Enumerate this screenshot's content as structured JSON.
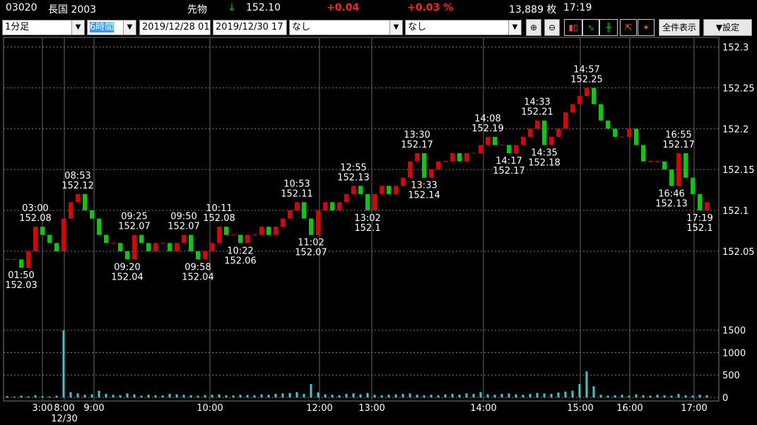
{
  "header": {
    "code": "03020",
    "name": "長国 2003",
    "kind": "先物",
    "arrow": "↓",
    "price": "152.10",
    "change": "+0.04",
    "change_pct": "+0.03 %",
    "volume": "13,889 枚",
    "time": "17:19"
  },
  "toolbar": {
    "interval": "1分足",
    "span": "6時間",
    "from": "2019/12/28 01",
    "to": "2019/12/30 17",
    "indicator1": "なし",
    "indicator2": "なし",
    "show_all": "全件表示",
    "settings": "▼設定"
  },
  "chart_data": {
    "type": "candlestick",
    "up_color": "#e00000",
    "down_color": "#00d000",
    "volume_color": "#33cccc",
    "xlim": [
      0,
      101
    ],
    "xticks": [
      {
        "value": 5.5,
        "label": "3:00"
      },
      {
        "value": 8.6,
        "label": "8:00"
      },
      {
        "value": 12.8,
        "label": "9:00"
      },
      {
        "value": 29.2,
        "label": "10:00"
      },
      {
        "value": 44.7,
        "label": "12:00"
      },
      {
        "value": 52.1,
        "label": "13:00"
      },
      {
        "value": 67.9,
        "label": "14:00"
      },
      {
        "value": 81.6,
        "label": "15:00"
      },
      {
        "value": 88.6,
        "label": "16:00"
      },
      {
        "value": 97.7,
        "label": "17:00"
      }
    ],
    "date_labels": [
      {
        "value": 8.6,
        "label": "12/30"
      }
    ],
    "ylim": [
      151.96,
      152.31
    ],
    "yticks": [
      152.05,
      152.1,
      152.15,
      152.2,
      152.25,
      152.3
    ],
    "y2lim": [
      0,
      1700
    ],
    "y2ticks": [
      0,
      500,
      1000,
      1500
    ],
    "grid": true,
    "open": [
      152.04,
      152.04,
      152.04,
      152.03,
      152.05,
      152.08,
      152.07,
      152.06,
      152.05,
      152.09,
      152.11,
      152.12,
      152.1,
      152.09,
      152.07,
      152.06,
      152.06,
      152.05,
      152.04,
      152.07,
      152.06,
      152.05,
      152.06,
      152.06,
      152.05,
      152.06,
      152.07,
      152.05,
      152.04,
      152.05,
      152.06,
      152.08,
      152.07,
      152.07,
      152.06,
      152.07,
      152.07,
      152.08,
      152.07,
      152.08,
      152.09,
      152.1,
      152.11,
      152.09,
      152.07,
      152.1,
      152.11,
      152.1,
      152.11,
      152.12,
      152.13,
      152.12,
      152.1,
      152.12,
      152.13,
      152.12,
      152.13,
      152.14,
      152.16,
      152.17,
      152.14,
      152.15,
      152.16,
      152.16,
      152.17,
      152.16,
      152.17,
      152.17,
      152.18,
      152.19,
      152.18,
      152.18,
      152.17,
      152.18,
      152.19,
      152.2,
      152.21,
      152.18,
      152.19,
      152.2,
      152.22,
      152.23,
      152.24,
      152.25,
      152.23,
      152.21,
      152.2,
      152.19,
      152.19,
      152.2,
      152.18,
      152.16,
      152.16,
      152.16,
      152.15,
      152.13,
      152.17,
      152.14,
      152.12,
      152.1
    ],
    "high": [
      152.04,
      152.04,
      152.04,
      152.05,
      152.08,
      152.08,
      152.07,
      152.06,
      152.09,
      152.11,
      152.12,
      152.12,
      152.1,
      152.09,
      152.07,
      152.06,
      152.06,
      152.05,
      152.07,
      152.07,
      152.06,
      152.06,
      152.06,
      152.06,
      152.06,
      152.07,
      152.07,
      152.05,
      152.05,
      152.06,
      152.08,
      152.08,
      152.07,
      152.07,
      152.07,
      152.07,
      152.08,
      152.08,
      152.08,
      152.09,
      152.1,
      152.11,
      152.11,
      152.09,
      152.1,
      152.11,
      152.11,
      152.11,
      152.12,
      152.13,
      152.13,
      152.12,
      152.12,
      152.13,
      152.13,
      152.13,
      152.14,
      152.16,
      152.17,
      152.17,
      152.15,
      152.16,
      152.16,
      152.17,
      152.17,
      152.17,
      152.17,
      152.18,
      152.19,
      152.19,
      152.18,
      152.18,
      152.18,
      152.19,
      152.2,
      152.21,
      152.21,
      152.19,
      152.2,
      152.22,
      152.23,
      152.24,
      152.25,
      152.25,
      152.23,
      152.21,
      152.2,
      152.19,
      152.2,
      152.2,
      152.18,
      152.16,
      152.16,
      152.16,
      152.15,
      152.17,
      152.17,
      152.14,
      152.12,
      152.11
    ],
    "low": [
      152.04,
      152.04,
      152.03,
      152.03,
      152.05,
      152.07,
      152.06,
      152.05,
      152.05,
      152.09,
      152.11,
      152.1,
      152.09,
      152.07,
      152.06,
      152.06,
      152.05,
      152.04,
      152.04,
      152.06,
      152.05,
      152.05,
      152.06,
      152.05,
      152.05,
      152.06,
      152.05,
      152.04,
      152.04,
      152.05,
      152.06,
      152.07,
      152.07,
      152.06,
      152.06,
      152.07,
      152.07,
      152.07,
      152.07,
      152.08,
      152.09,
      152.1,
      152.09,
      152.07,
      152.07,
      152.1,
      152.1,
      152.1,
      152.11,
      152.12,
      152.12,
      152.1,
      152.1,
      152.12,
      152.12,
      152.12,
      152.13,
      152.14,
      152.16,
      152.14,
      152.14,
      152.15,
      152.16,
      152.16,
      152.16,
      152.16,
      152.17,
      152.17,
      152.18,
      152.18,
      152.18,
      152.17,
      152.17,
      152.18,
      152.19,
      152.2,
      152.18,
      152.18,
      152.19,
      152.2,
      152.22,
      152.23,
      152.24,
      152.23,
      152.21,
      152.2,
      152.19,
      152.19,
      152.19,
      152.18,
      152.16,
      152.16,
      152.16,
      152.15,
      152.13,
      152.13,
      152.14,
      152.12,
      152.1,
      152.1
    ],
    "close": [
      152.04,
      152.04,
      152.03,
      152.05,
      152.08,
      152.07,
      152.06,
      152.05,
      152.09,
      152.11,
      152.12,
      152.1,
      152.09,
      152.07,
      152.06,
      152.06,
      152.05,
      152.04,
      152.07,
      152.06,
      152.05,
      152.06,
      152.06,
      152.05,
      152.06,
      152.07,
      152.05,
      152.04,
      152.05,
      152.06,
      152.08,
      152.07,
      152.07,
      152.06,
      152.07,
      152.07,
      152.08,
      152.07,
      152.08,
      152.09,
      152.1,
      152.11,
      152.09,
      152.07,
      152.1,
      152.11,
      152.1,
      152.11,
      152.12,
      152.13,
      152.12,
      152.1,
      152.12,
      152.13,
      152.12,
      152.13,
      152.14,
      152.16,
      152.17,
      152.14,
      152.15,
      152.16,
      152.16,
      152.17,
      152.16,
      152.17,
      152.17,
      152.18,
      152.19,
      152.18,
      152.18,
      152.17,
      152.18,
      152.19,
      152.2,
      152.21,
      152.18,
      152.19,
      152.2,
      152.22,
      152.23,
      152.24,
      152.25,
      152.23,
      152.21,
      152.2,
      152.19,
      152.19,
      152.2,
      152.18,
      152.16,
      152.16,
      152.16,
      152.15,
      152.13,
      152.17,
      152.14,
      152.12,
      152.1,
      152.11
    ],
    "volume": [
      30,
      20,
      40,
      25,
      50,
      30,
      20,
      40,
      1500,
      120,
      90,
      60,
      70,
      150,
      80,
      60,
      50,
      90,
      70,
      40,
      60,
      50,
      45,
      80,
      70,
      60,
      50,
      40,
      55,
      60,
      70,
      50,
      45,
      60,
      55,
      50,
      70,
      60,
      80,
      90,
      100,
      120,
      80,
      300,
      110,
      70,
      60,
      50,
      80,
      90,
      70,
      100,
      60,
      50,
      60,
      70,
      80,
      90,
      60,
      50,
      60,
      50,
      70,
      80,
      60,
      90,
      80,
      120,
      70,
      60,
      80,
      90,
      70,
      60,
      80,
      100,
      90,
      80,
      110,
      130,
      150,
      300,
      580,
      250,
      60,
      40,
      50,
      60,
      40,
      70,
      50,
      40,
      60,
      50,
      40,
      80,
      50,
      40,
      60,
      50
    ],
    "annotations": [
      {
        "index": 2,
        "position": "below",
        "time": "01:50",
        "price": 152.03
      },
      {
        "index": 4,
        "position": "above",
        "time": "03:00",
        "price": 152.08
      },
      {
        "index": 10,
        "position": "above",
        "time": "08:53",
        "price": 152.12
      },
      {
        "index": 17,
        "position": "below",
        "time": "09:20",
        "price": 152.04
      },
      {
        "index": 18,
        "position": "above",
        "time": "09:25",
        "price": 152.07
      },
      {
        "index": 25,
        "position": "above",
        "time": "09:50",
        "price": 152.07
      },
      {
        "index": 27,
        "position": "below",
        "time": "09:58",
        "price": 152.04
      },
      {
        "index": 30,
        "position": "above",
        "time": "10:11",
        "price": 152.08
      },
      {
        "index": 33,
        "position": "below",
        "time": "10:22",
        "price": 152.06
      },
      {
        "index": 41,
        "position": "above",
        "time": "10:53",
        "price": 152.11
      },
      {
        "index": 43,
        "position": "below",
        "time": "11:02",
        "price": 152.07
      },
      {
        "index": 49,
        "position": "above",
        "time": "12:55",
        "price": 152.13
      },
      {
        "index": 51,
        "position": "below",
        "time": "13:02",
        "price": 152.1
      },
      {
        "index": 58,
        "position": "above",
        "time": "13:30",
        "price": 152.17
      },
      {
        "index": 59,
        "position": "below",
        "time": "13:33",
        "price": 152.14
      },
      {
        "index": 68,
        "position": "above",
        "time": "14:08",
        "price": 152.19
      },
      {
        "index": 71,
        "position": "below",
        "time": "14:17",
        "price": 152.17
      },
      {
        "index": 75,
        "position": "above",
        "time": "14:33",
        "price": 152.21
      },
      {
        "index": 76,
        "position": "below",
        "time": "14:35",
        "price": 152.18
      },
      {
        "index": 82,
        "position": "above",
        "time": "14:57",
        "price": 152.25
      },
      {
        "index": 95,
        "position": "above",
        "time": "16:55",
        "price": 152.17
      },
      {
        "index": 94,
        "position": "below",
        "time": "16:46",
        "price": 152.13
      },
      {
        "index": 98,
        "position": "below",
        "time": "17:19",
        "price": 152.1
      }
    ]
  }
}
